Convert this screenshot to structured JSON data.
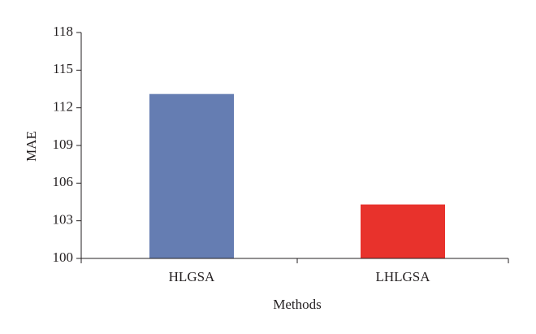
{
  "chart_data": {
    "type": "bar",
    "x_label": "Methods",
    "y_label": "MAE",
    "categories": [
      "HLGSA",
      "LHLGSA"
    ],
    "values": [
      113.1,
      104.3
    ],
    "colors": [
      "#657db2",
      "#e8322c"
    ],
    "ylim": [
      100,
      118
    ],
    "yticks": [
      100,
      103,
      106,
      109,
      112,
      115,
      118
    ],
    "grid": false
  }
}
